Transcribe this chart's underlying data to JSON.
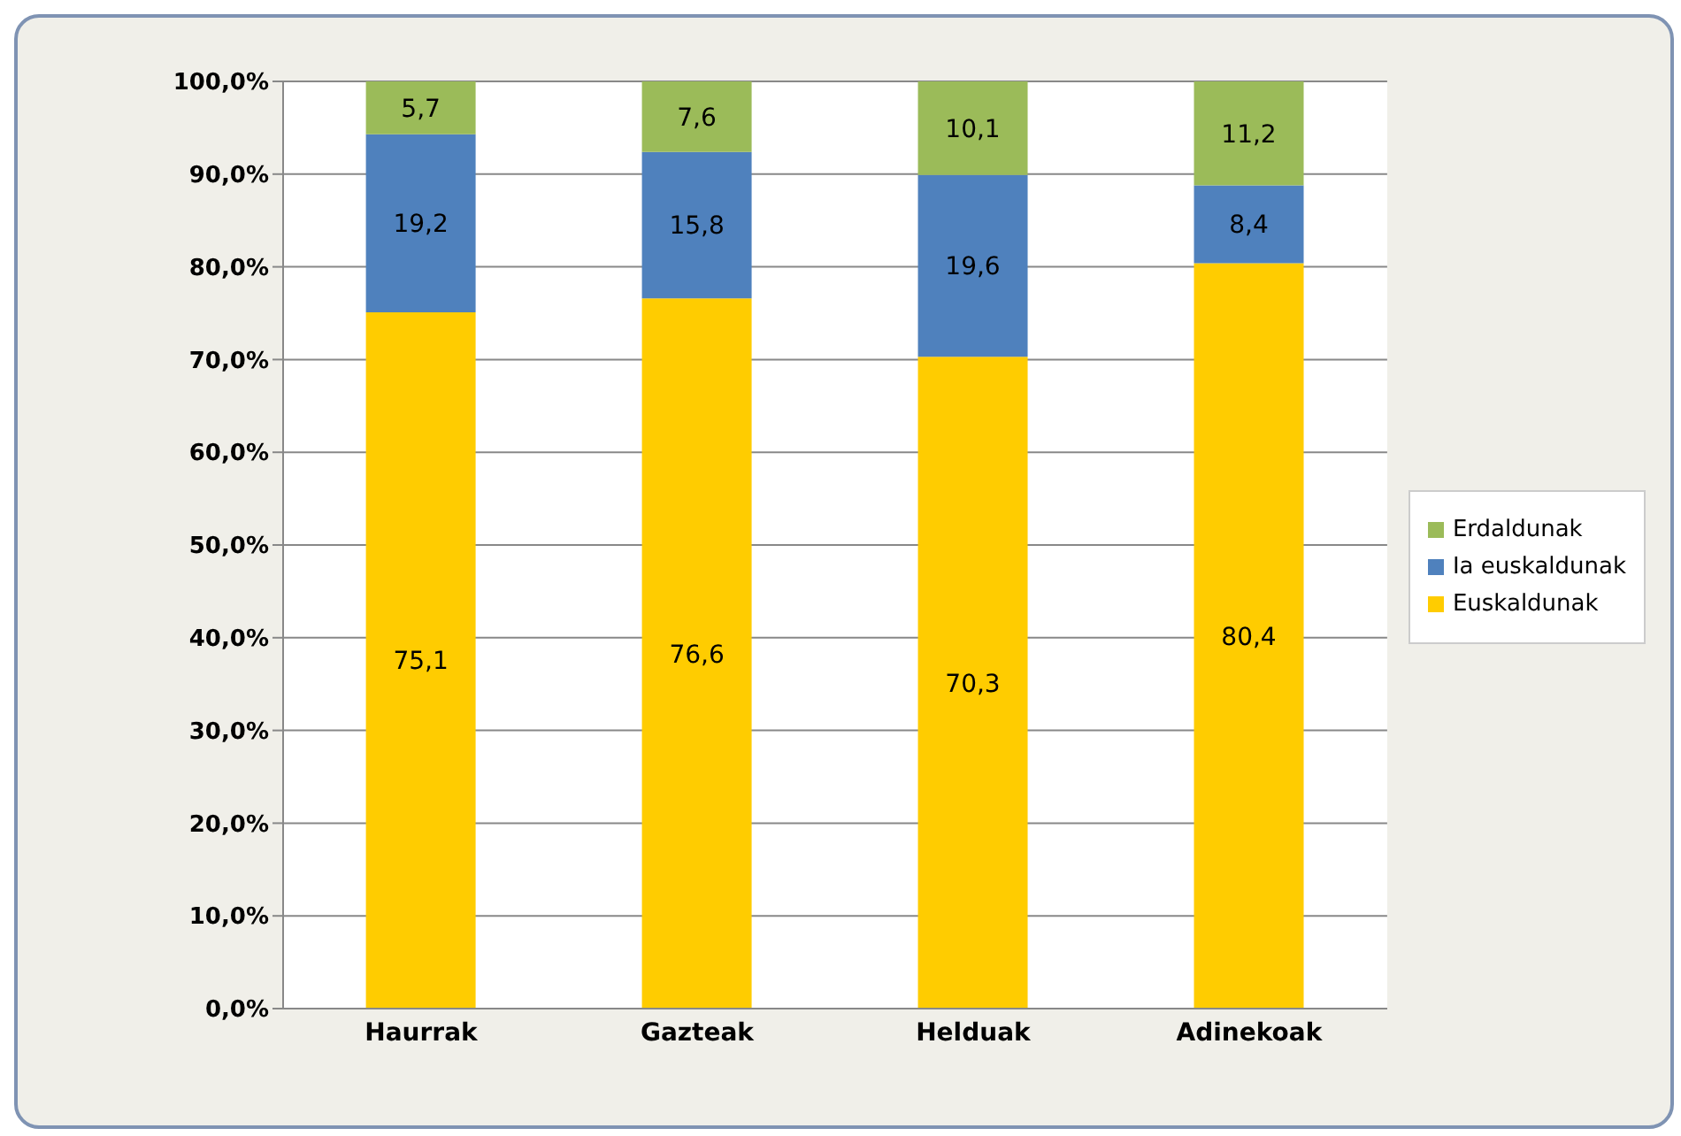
{
  "chart_data": {
    "type": "bar",
    "stacked": true,
    "categories": [
      "Haurrak",
      "Gazteak",
      "Helduak",
      "Adinekoak"
    ],
    "series": [
      {
        "name": "Euskaldunak",
        "color": "#ffcc00",
        "values": [
          75.1,
          76.6,
          70.3,
          80.4
        ],
        "value_labels": [
          "75,1",
          "76,6",
          "70,3",
          "80,4"
        ]
      },
      {
        "name": "Ia euskaldunak",
        "color": "#4f81bd",
        "values": [
          19.2,
          15.8,
          19.6,
          8.4
        ],
        "value_labels": [
          "19,2",
          "15,8",
          "19,6",
          "8,4"
        ]
      },
      {
        "name": "Erdaldunak",
        "color": "#9bbb59",
        "values": [
          5.7,
          7.6,
          10.1,
          11.2
        ],
        "value_labels": [
          "5,7",
          "7,6",
          "10,1",
          "11,2"
        ]
      }
    ],
    "ylim": [
      0,
      100
    ],
    "yticks": [
      {
        "value": 0,
        "label": "0,0%"
      },
      {
        "value": 10,
        "label": "10,0%"
      },
      {
        "value": 20,
        "label": "20,0%"
      },
      {
        "value": 30,
        "label": "30,0%"
      },
      {
        "value": 40,
        "label": "40,0%"
      },
      {
        "value": 50,
        "label": "50,0%"
      },
      {
        "value": 60,
        "label": "60,0%"
      },
      {
        "value": 70,
        "label": "70,0%"
      },
      {
        "value": 80,
        "label": "80,0%"
      },
      {
        "value": 90,
        "label": "90,0%"
      },
      {
        "value": 100,
        "label": "100,0%"
      }
    ],
    "grid": "y",
    "legend": "right"
  }
}
